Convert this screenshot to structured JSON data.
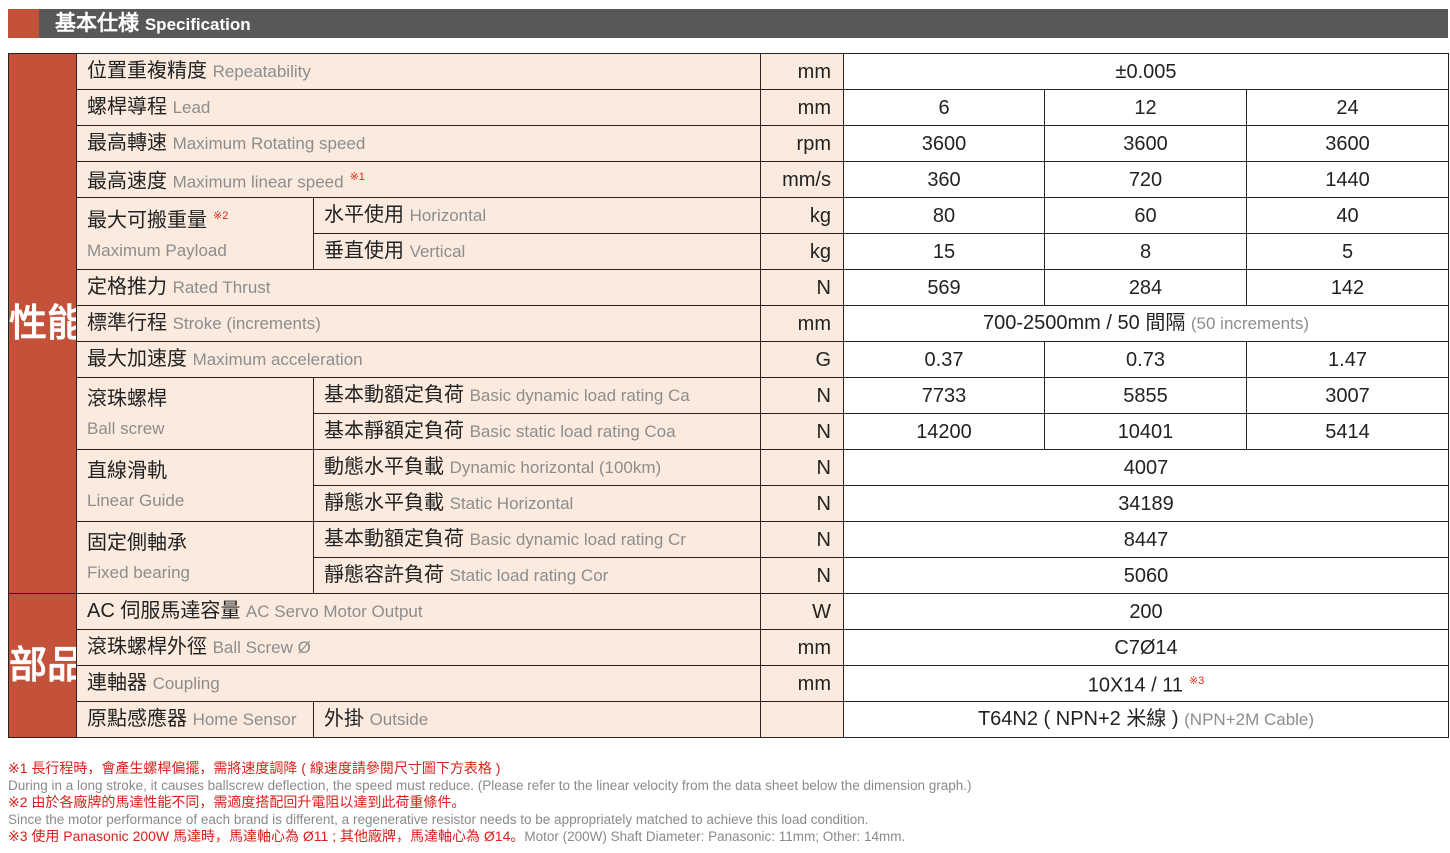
{
  "header": {
    "title_zh": "基本仕様",
    "title_en": "Specification"
  },
  "colors": {
    "accent": "#c4523a",
    "header_bg": "#58575a",
    "label_bg": "#fbeade",
    "note_red": "#d8221c"
  },
  "groups": [
    {
      "label": "性能",
      "rows": 15
    },
    {
      "label": "部品",
      "rows": 4
    }
  ],
  "rows": [
    {
      "zh": "位置重複精度",
      "en": "Repeatability",
      "unit": "mm",
      "values": [
        "±0.005"
      ]
    },
    {
      "zh": "螺桿導程",
      "en": "Lead",
      "unit": "mm",
      "values": [
        "6",
        "12",
        "24"
      ]
    },
    {
      "zh": "最高轉速",
      "en": "Maximum Rotating speed",
      "unit": "rpm",
      "values": [
        "3600",
        "3600",
        "3600"
      ]
    },
    {
      "zh": "最高速度",
      "en": "Maximum linear speed",
      "sup": "※1",
      "unit": "mm/s",
      "values": [
        "360",
        "720",
        "1440"
      ]
    },
    {
      "parent": {
        "zh": "最大可搬重量",
        "sup": "※2",
        "en": "Maximum Payload",
        "span": 2
      },
      "zh": "水平使用",
      "en": "Horizontal",
      "unit": "kg",
      "values": [
        "80",
        "60",
        "40"
      ]
    },
    {
      "zh": "垂直使用",
      "en": "Vertical",
      "unit": "kg",
      "values": [
        "15",
        "8",
        "5"
      ]
    },
    {
      "zh": "定格推力",
      "en": "Rated Thrust",
      "unit": "N",
      "values": [
        "569",
        "284",
        "142"
      ]
    },
    {
      "zh": "標準行程",
      "en": "Stroke (increments)",
      "unit": "mm",
      "values": [
        "700-2500mm / 50 間隔"
      ],
      "value_en": "(50 increments)"
    },
    {
      "zh": "最大加速度",
      "en": "Maximum acceleration",
      "unit": "G",
      "values": [
        "0.37",
        "0.73",
        "1.47"
      ]
    },
    {
      "parent": {
        "zh": "滾珠螺桿",
        "en": "Ball screw",
        "span": 2
      },
      "zh": "基本動額定負荷",
      "en": "Basic dynamic load rating Ca",
      "unit": "N",
      "values": [
        "7733",
        "5855",
        "3007"
      ]
    },
    {
      "zh": "基本靜額定負荷",
      "en": "Basic static load rating Coa",
      "unit": "N",
      "values": [
        "14200",
        "10401",
        "5414"
      ]
    },
    {
      "parent": {
        "zh": "直線滑軌",
        "en": "Linear Guide",
        "span": 2
      },
      "zh": "動態水平負載",
      "en": "Dynamic horizontal (100km)",
      "unit": "N",
      "values": [
        "4007"
      ]
    },
    {
      "zh": "靜態水平負載",
      "en": "Static Horizontal",
      "unit": "N",
      "values": [
        "34189"
      ]
    },
    {
      "parent": {
        "zh": "固定側軸承",
        "en": "Fixed bearing",
        "span": 2
      },
      "zh": "基本動額定負荷",
      "en": "Basic dynamic load rating Cr",
      "unit": "N",
      "values": [
        "8447"
      ]
    },
    {
      "zh": "靜態容許負荷",
      "en": "Static load rating Cor",
      "unit": "N",
      "values": [
        "5060"
      ]
    },
    {
      "zh": "AC 伺服馬達容量",
      "en": "AC Servo Motor Output",
      "unit": "W",
      "values": [
        "200"
      ]
    },
    {
      "zh": "滾珠螺桿外徑",
      "en": "Ball Screw Ø",
      "unit": "mm",
      "values": [
        "C7Ø14"
      ]
    },
    {
      "zh": "連軸器",
      "en": "Coupling",
      "unit": "mm",
      "values": [
        "10X14 / 11"
      ],
      "value_sup": "※3"
    },
    {
      "parent": {
        "zh": "原點感應器",
        "en": "Home Sensor",
        "span": 1,
        "inline": true
      },
      "zh": "外掛",
      "en": "Outside",
      "unit": "",
      "values": [
        "T64N2 ( NPN+2 米線 )"
      ],
      "value_en": "(NPN+2M Cable)"
    }
  ],
  "notes": [
    {
      "zh": "※1 長行程時，會產生螺桿偏擺，需將速度調降 ( 線速度請參閱尺寸圖下方表格 )",
      "en": "During in a long stroke, it causes ballscrew deflection, the speed must reduce. (Please refer to the linear velocity from the data sheet below the dimension graph.)"
    },
    {
      "zh": "※2 由於各廠牌的馬達性能不同，需適度搭配回升電阻以達到此荷重條件。",
      "en": "Since the motor performance of each brand is different, a regenerative resistor needs to be appropriately matched to achieve this load condition."
    },
    {
      "zh": "※3 使用 Panasonic 200W 馬達時，馬達軸心為 Ø11 ; 其他廠牌，馬達軸心為 Ø14。",
      "en": "Motor (200W) Shaft Diameter: Panasonic: 11mm; Other: 14mm.",
      "inline": true
    }
  ]
}
